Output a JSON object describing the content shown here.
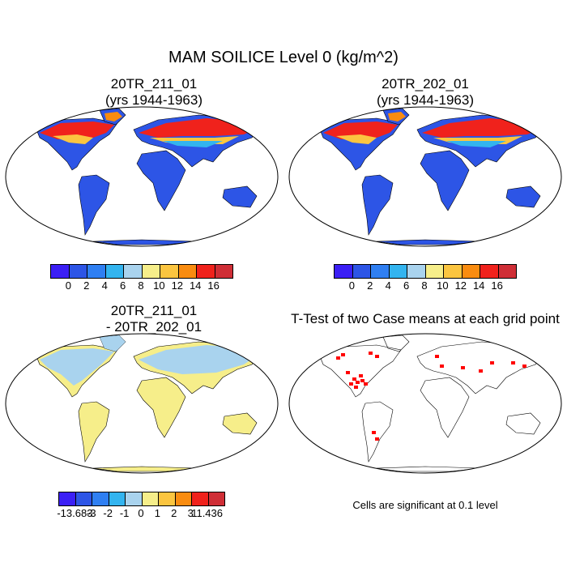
{
  "figure": {
    "title": "MAM SOILICE Level 0 (kg/m^2)"
  },
  "panels": [
    {
      "id": "p1",
      "title_line1": "20TR_211_01",
      "title_line2": "(yrs 1944-1963)",
      "kind": "field"
    },
    {
      "id": "p2",
      "title_line1": "20TR_202_01",
      "title_line2": "(yrs 1944-1963)",
      "kind": "field"
    },
    {
      "id": "p3",
      "title_line1": "20TR_211_01",
      "title_line2": "- 20TR_202_01",
      "kind": "difference"
    },
    {
      "id": "p4",
      "title_line1": "T-Test of two Case means at each grid point",
      "title_line2": "",
      "kind": "significance",
      "note": "Cells are significant at 0.1 level"
    }
  ],
  "colorbars": {
    "field": {
      "colors": [
        "#3b1ff5",
        "#2d55e6",
        "#2f7ff2",
        "#33b4ef",
        "#a9d3ee",
        "#f6ee8a",
        "#fbc540",
        "#f98c10",
        "#f0221c",
        "#cf2e36"
      ],
      "labels": [
        "0",
        "2",
        "4",
        "6",
        "8",
        "10",
        "12",
        "14",
        "16"
      ]
    },
    "difference": {
      "colors": [
        "#3b1ff5",
        "#2d55e6",
        "#2f7ff2",
        "#33b4ef",
        "#a9d3ee",
        "#f6ee8a",
        "#fbc540",
        "#f98c10",
        "#f0221c",
        "#cf2e36"
      ],
      "labels": [
        "-13.683",
        "-3",
        "-2",
        "-1",
        "0",
        "1",
        "2",
        "3",
        "11.436"
      ]
    }
  },
  "map_colors": {
    "ocean": "#ffffff",
    "land_field": "#2d55e6",
    "land_diff": "#f6ee8a",
    "high_lat_diff": "#a9d3ee",
    "significance": "#ff0000",
    "hot": [
      "#f0221c",
      "#fbc540",
      "#f98c10",
      "#33b4ef"
    ]
  }
}
